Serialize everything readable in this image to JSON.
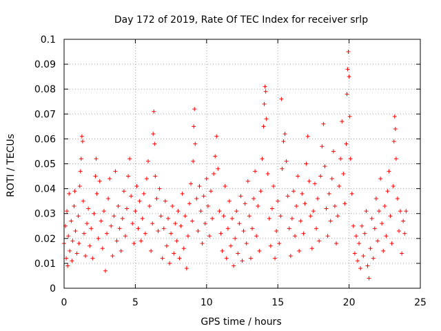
{
  "chart_data": {
    "type": "scatter",
    "title": "Day 172 of 2019, Rate Of TEC Index for receiver srlp",
    "xlabel": "GPS time / hours",
    "ylabel": "ROTI / TECUs",
    "xlim": [
      0,
      25
    ],
    "ylim": [
      0,
      0.1
    ],
    "x_ticks": [
      0,
      5,
      10,
      15,
      20,
      25
    ],
    "x_tick_labels": [
      "0",
      "5",
      "10",
      "15",
      "20",
      "25"
    ],
    "y_ticks": [
      0,
      0.01,
      0.02,
      0.03,
      0.04,
      0.05,
      0.06,
      0.07,
      0.08,
      0.09,
      0.1
    ],
    "y_tick_labels": [
      "0",
      "0.01",
      "0.02",
      "0.03",
      "0.04",
      "0.05",
      "0.06",
      "0.07",
      "0.08",
      "0.09",
      "0.1"
    ],
    "grid": true,
    "marker": "+",
    "color": "#ff0000",
    "series": [
      {
        "name": "ROTI",
        "points": [
          [
            0.0,
            0.018
          ],
          [
            0.1,
            0.025
          ],
          [
            0.15,
            0.012
          ],
          [
            0.2,
            0.031
          ],
          [
            0.25,
            0.009
          ],
          [
            0.3,
            0.021
          ],
          [
            0.35,
            0.038
          ],
          [
            0.4,
            0.015
          ],
          [
            0.5,
            0.027
          ],
          [
            0.55,
            0.011
          ],
          [
            0.6,
            0.019
          ],
          [
            0.7,
            0.033
          ],
          [
            0.75,
            0.039
          ],
          [
            0.8,
            0.023
          ],
          [
            0.9,
            0.014
          ],
          [
            1.0,
            0.029
          ],
          [
            1.05,
            0.018
          ],
          [
            1.1,
            0.041
          ],
          [
            1.15,
            0.047
          ],
          [
            1.2,
            0.052
          ],
          [
            1.25,
            0.061
          ],
          [
            1.3,
            0.059
          ],
          [
            1.35,
            0.035
          ],
          [
            1.4,
            0.022
          ],
          [
            1.5,
            0.013
          ],
          [
            1.6,
            0.026
          ],
          [
            1.7,
            0.032
          ],
          [
            1.8,
            0.017
          ],
          [
            1.9,
            0.024
          ],
          [
            2.0,
            0.012
          ],
          [
            2.1,
            0.03
          ],
          [
            2.2,
            0.045
          ],
          [
            2.25,
            0.052
          ],
          [
            2.3,
            0.038
          ],
          [
            2.4,
            0.02
          ],
          [
            2.5,
            0.043
          ],
          [
            2.6,
            0.027
          ],
          [
            2.7,
            0.016
          ],
          [
            2.8,
            0.031
          ],
          [
            2.9,
            0.007
          ],
          [
            3.0,
            0.022
          ],
          [
            3.1,
            0.036
          ],
          [
            3.2,
            0.044
          ],
          [
            3.3,
            0.025
          ],
          [
            3.4,
            0.013
          ],
          [
            3.5,
            0.029
          ],
          [
            3.6,
            0.047
          ],
          [
            3.7,
            0.019
          ],
          [
            3.8,
            0.033
          ],
          [
            3.9,
            0.024
          ],
          [
            4.0,
            0.015
          ],
          [
            4.1,
            0.028
          ],
          [
            4.2,
            0.039
          ],
          [
            4.3,
            0.021
          ],
          [
            4.4,
            0.032
          ],
          [
            4.5,
            0.045
          ],
          [
            4.6,
            0.052
          ],
          [
            4.7,
            0.037
          ],
          [
            4.8,
            0.026
          ],
          [
            4.9,
            0.018
          ],
          [
            5.0,
            0.031
          ],
          [
            5.1,
            0.041
          ],
          [
            5.2,
            0.024
          ],
          [
            5.3,
            0.035
          ],
          [
            5.4,
            0.019
          ],
          [
            5.5,
            0.028
          ],
          [
            5.6,
            0.038
          ],
          [
            5.7,
            0.022
          ],
          [
            5.8,
            0.044
          ],
          [
            5.9,
            0.051
          ],
          [
            6.0,
            0.033
          ],
          [
            6.1,
            0.015
          ],
          [
            6.2,
            0.026
          ],
          [
            6.25,
            0.062
          ],
          [
            6.3,
            0.071
          ],
          [
            6.35,
            0.058
          ],
          [
            6.4,
            0.045
          ],
          [
            6.5,
            0.036
          ],
          [
            6.6,
            0.023
          ],
          [
            6.7,
            0.04
          ],
          [
            6.8,
            0.029
          ],
          [
            6.9,
            0.012
          ],
          [
            7.0,
            0.024
          ],
          [
            7.1,
            0.035
          ],
          [
            7.2,
            0.017
          ],
          [
            7.3,
            0.028
          ],
          [
            7.4,
            0.01
          ],
          [
            7.5,
            0.022
          ],
          [
            7.6,
            0.033
          ],
          [
            7.7,
            0.014
          ],
          [
            7.8,
            0.026
          ],
          [
            7.9,
            0.019
          ],
          [
            8.0,
            0.031
          ],
          [
            8.1,
            0.012
          ],
          [
            8.2,
            0.025
          ],
          [
            8.3,
            0.038
          ],
          [
            8.4,
            0.016
          ],
          [
            8.5,
            0.029
          ],
          [
            8.6,
            0.008
          ],
          [
            8.7,
            0.021
          ],
          [
            8.8,
            0.034
          ],
          [
            8.9,
            0.042
          ],
          [
            9.0,
            0.027
          ],
          [
            9.05,
            0.051
          ],
          [
            9.1,
            0.065
          ],
          [
            9.15,
            0.072
          ],
          [
            9.2,
            0.058
          ],
          [
            9.3,
            0.036
          ],
          [
            9.4,
            0.023
          ],
          [
            9.5,
            0.041
          ],
          [
            9.6,
            0.031
          ],
          [
            9.7,
            0.018
          ],
          [
            9.8,
            0.037
          ],
          [
            9.9,
            0.026
          ],
          [
            10.0,
            0.044
          ],
          [
            10.1,
            0.033
          ],
          [
            10.2,
            0.021
          ],
          [
            10.3,
            0.039
          ],
          [
            10.4,
            0.028
          ],
          [
            10.5,
            0.046
          ],
          [
            10.6,
            0.053
          ],
          [
            10.7,
            0.061
          ],
          [
            10.8,
            0.048
          ],
          [
            10.9,
            0.031
          ],
          [
            11.0,
            0.022
          ],
          [
            11.1,
            0.015
          ],
          [
            11.2,
            0.029
          ],
          [
            11.3,
            0.041
          ],
          [
            11.4,
            0.012
          ],
          [
            11.5,
            0.024
          ],
          [
            11.6,
            0.035
          ],
          [
            11.7,
            0.017
          ],
          [
            11.8,
            0.028
          ],
          [
            11.9,
            0.009
          ],
          [
            12.0,
            0.02
          ],
          [
            12.1,
            0.031
          ],
          [
            12.2,
            0.014
          ],
          [
            12.3,
            0.026
          ],
          [
            12.4,
            0.037
          ],
          [
            12.5,
            0.011
          ],
          [
            12.6,
            0.023
          ],
          [
            12.7,
            0.034
          ],
          [
            12.8,
            0.018
          ],
          [
            12.9,
            0.043
          ],
          [
            13.0,
            0.029
          ],
          [
            13.1,
            0.012
          ],
          [
            13.2,
            0.024
          ],
          [
            13.3,
            0.036
          ],
          [
            13.4,
            0.047
          ],
          [
            13.5,
            0.021
          ],
          [
            13.6,
            0.033
          ],
          [
            13.7,
            0.015
          ],
          [
            13.8,
            0.039
          ],
          [
            13.9,
            0.052
          ],
          [
            14.0,
            0.065
          ],
          [
            14.05,
            0.074
          ],
          [
            14.1,
            0.081
          ],
          [
            14.15,
            0.079
          ],
          [
            14.2,
            0.068
          ],
          [
            14.3,
            0.046
          ],
          [
            14.4,
            0.028
          ],
          [
            14.5,
            0.017
          ],
          [
            14.6,
            0.032
          ],
          [
            14.7,
            0.041
          ],
          [
            14.8,
            0.012
          ],
          [
            14.9,
            0.023
          ],
          [
            15.0,
            0.035
          ],
          [
            15.1,
            0.018
          ],
          [
            15.2,
            0.029
          ],
          [
            15.25,
            0.076
          ],
          [
            15.3,
            0.048
          ],
          [
            15.4,
            0.059
          ],
          [
            15.5,
            0.062
          ],
          [
            15.6,
            0.051
          ],
          [
            15.7,
            0.037
          ],
          [
            15.8,
            0.024
          ],
          [
            15.9,
            0.013
          ],
          [
            16.0,
            0.028
          ],
          [
            16.1,
            0.039
          ],
          [
            16.2,
            0.021
          ],
          [
            16.3,
            0.033
          ],
          [
            16.4,
            0.045
          ],
          [
            16.5,
            0.015
          ],
          [
            16.6,
            0.027
          ],
          [
            16.7,
            0.038
          ],
          [
            16.8,
            0.022
          ],
          [
            16.9,
            0.034
          ],
          [
            17.0,
            0.05
          ],
          [
            17.1,
            0.061
          ],
          [
            17.2,
            0.043
          ],
          [
            17.3,
            0.029
          ],
          [
            17.4,
            0.016
          ],
          [
            17.5,
            0.031
          ],
          [
            17.6,
            0.042
          ],
          [
            17.7,
            0.024
          ],
          [
            17.8,
            0.036
          ],
          [
            17.9,
            0.019
          ],
          [
            18.0,
            0.045
          ],
          [
            18.1,
            0.057
          ],
          [
            18.2,
            0.066
          ],
          [
            18.3,
            0.049
          ],
          [
            18.4,
            0.032
          ],
          [
            18.5,
            0.021
          ],
          [
            18.6,
            0.038
          ],
          [
            18.7,
            0.027
          ],
          [
            18.8,
            0.044
          ],
          [
            18.9,
            0.055
          ],
          [
            19.0,
            0.033
          ],
          [
            19.1,
            0.018
          ],
          [
            19.2,
            0.029
          ],
          [
            19.3,
            0.041
          ],
          [
            19.4,
            0.052
          ],
          [
            19.5,
            0.067
          ],
          [
            19.6,
            0.046
          ],
          [
            19.7,
            0.034
          ],
          [
            19.8,
            0.058
          ],
          [
            19.85,
            0.078
          ],
          [
            19.9,
            0.088
          ],
          [
            19.95,
            0.095
          ],
          [
            20.0,
            0.085
          ],
          [
            20.05,
            0.069
          ],
          [
            20.1,
            0.052
          ],
          [
            20.2,
            0.038
          ],
          [
            20.3,
            0.025
          ],
          [
            20.4,
            0.014
          ],
          [
            20.5,
            0.021
          ],
          [
            20.6,
            0.011
          ],
          [
            20.7,
            0.018
          ],
          [
            20.8,
            0.008
          ],
          [
            20.9,
            0.025
          ],
          [
            21.0,
            0.013
          ],
          [
            21.1,
            0.022
          ],
          [
            21.2,
            0.031
          ],
          [
            21.3,
            0.009
          ],
          [
            21.4,
            0.004
          ],
          [
            21.5,
            0.016
          ],
          [
            21.6,
            0.028
          ],
          [
            21.7,
            0.012
          ],
          [
            21.8,
            0.024
          ],
          [
            21.9,
            0.036
          ],
          [
            22.0,
            0.019
          ],
          [
            22.1,
            0.031
          ],
          [
            22.2,
            0.044
          ],
          [
            22.3,
            0.026
          ],
          [
            22.4,
            0.015
          ],
          [
            22.5,
            0.033
          ],
          [
            22.6,
            0.021
          ],
          [
            22.7,
            0.039
          ],
          [
            22.8,
            0.047
          ],
          [
            22.9,
            0.029
          ],
          [
            23.0,
            0.018
          ],
          [
            23.1,
            0.041
          ],
          [
            23.15,
            0.059
          ],
          [
            23.2,
            0.069
          ],
          [
            23.25,
            0.064
          ],
          [
            23.3,
            0.052
          ],
          [
            23.4,
            0.036
          ],
          [
            23.5,
            0.023
          ],
          [
            23.6,
            0.031
          ],
          [
            23.7,
            0.014
          ],
          [
            23.8,
            0.027
          ],
          [
            23.9,
            0.022
          ],
          [
            24.0,
            0.031
          ]
        ]
      }
    ]
  }
}
